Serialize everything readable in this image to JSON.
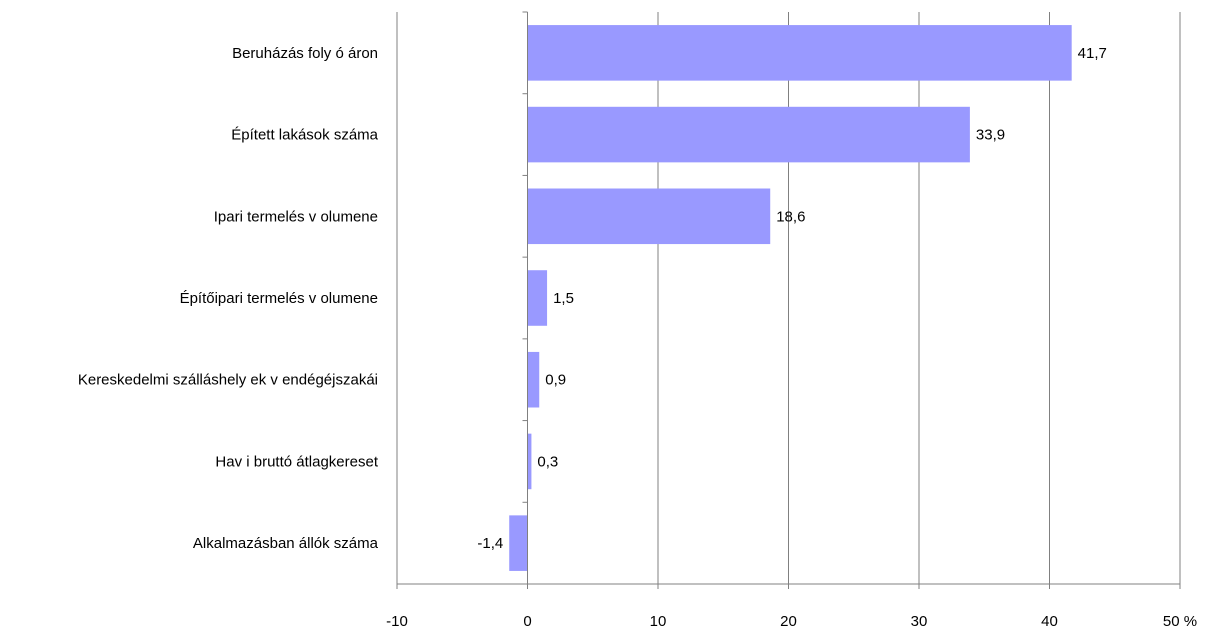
{
  "chart_data": {
    "type": "bar",
    "orientation": "horizontal",
    "categories": [
      "Beruházás foly ó áron",
      "Épített lakások száma",
      "Ipari termelés v olumene",
      "Építőipari termelés v olumene",
      "Kereskedelmi szálláshely ek v endégéjszakái",
      "Hav i bruttó átlagkereset",
      "Alkalmazásban állók száma"
    ],
    "values": [
      41.7,
      33.9,
      18.6,
      1.5,
      0.9,
      0.3,
      -1.4
    ],
    "value_labels": [
      "41,7",
      "33,9",
      "18,6",
      "1,5",
      "0,9",
      "0,3",
      "-1,4"
    ],
    "xlim": [
      -10,
      50
    ],
    "xticks": [
      -10,
      0,
      10,
      20,
      30,
      40,
      50
    ],
    "xtick_labels": [
      "-10",
      "0",
      "10",
      "20",
      "30",
      "40",
      "50 %"
    ],
    "grid": "vertical",
    "legend": "none",
    "bar_color": "#9999ff",
    "grid_color": "#808080"
  }
}
